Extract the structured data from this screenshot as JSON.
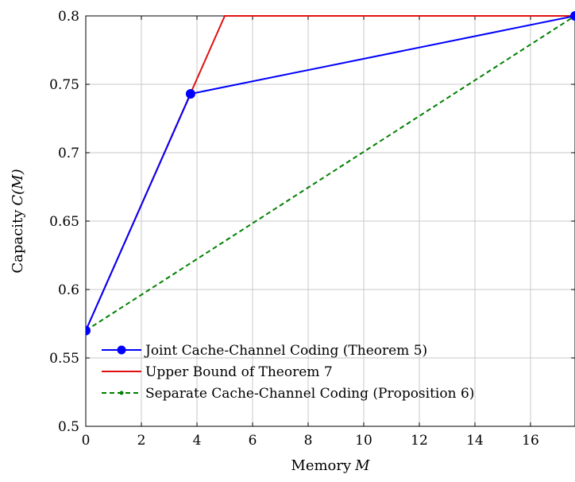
{
  "chart_data": {
    "type": "line",
    "xlabel": "Memory",
    "xlabel_var": "M",
    "ylabel": "Capacity",
    "ylabel_var": "C(M)",
    "xlim": [
      0,
      17.6
    ],
    "ylim": [
      0.5,
      0.8
    ],
    "xticks": [
      0,
      2,
      4,
      6,
      8,
      10,
      12,
      14,
      16
    ],
    "yticks": [
      0.5,
      0.55,
      0.6,
      0.65,
      0.7,
      0.75,
      0.8
    ],
    "grid": true,
    "legend_position": "bottom-left",
    "series": [
      {
        "name": "Joint Cache-Channel Coding (Theorem 5)",
        "color": "#0000ff",
        "style": "solid",
        "marker": "circle",
        "x": [
          0,
          3.77,
          17.6
        ],
        "y": [
          0.57,
          0.743,
          0.8
        ]
      },
      {
        "name": "Upper Bound of Theorem 7",
        "color": "#e01010",
        "style": "solid",
        "marker": "none",
        "x": [
          0,
          5.0,
          17.6
        ],
        "y": [
          0.57,
          0.8,
          0.8
        ]
      },
      {
        "name": "Separate Cache-Channel Coding (Proposition 6)",
        "color": "#008000",
        "style": "dashed",
        "marker": "dot",
        "x": [
          0,
          17.6
        ],
        "y": [
          0.57,
          0.8
        ]
      }
    ]
  }
}
